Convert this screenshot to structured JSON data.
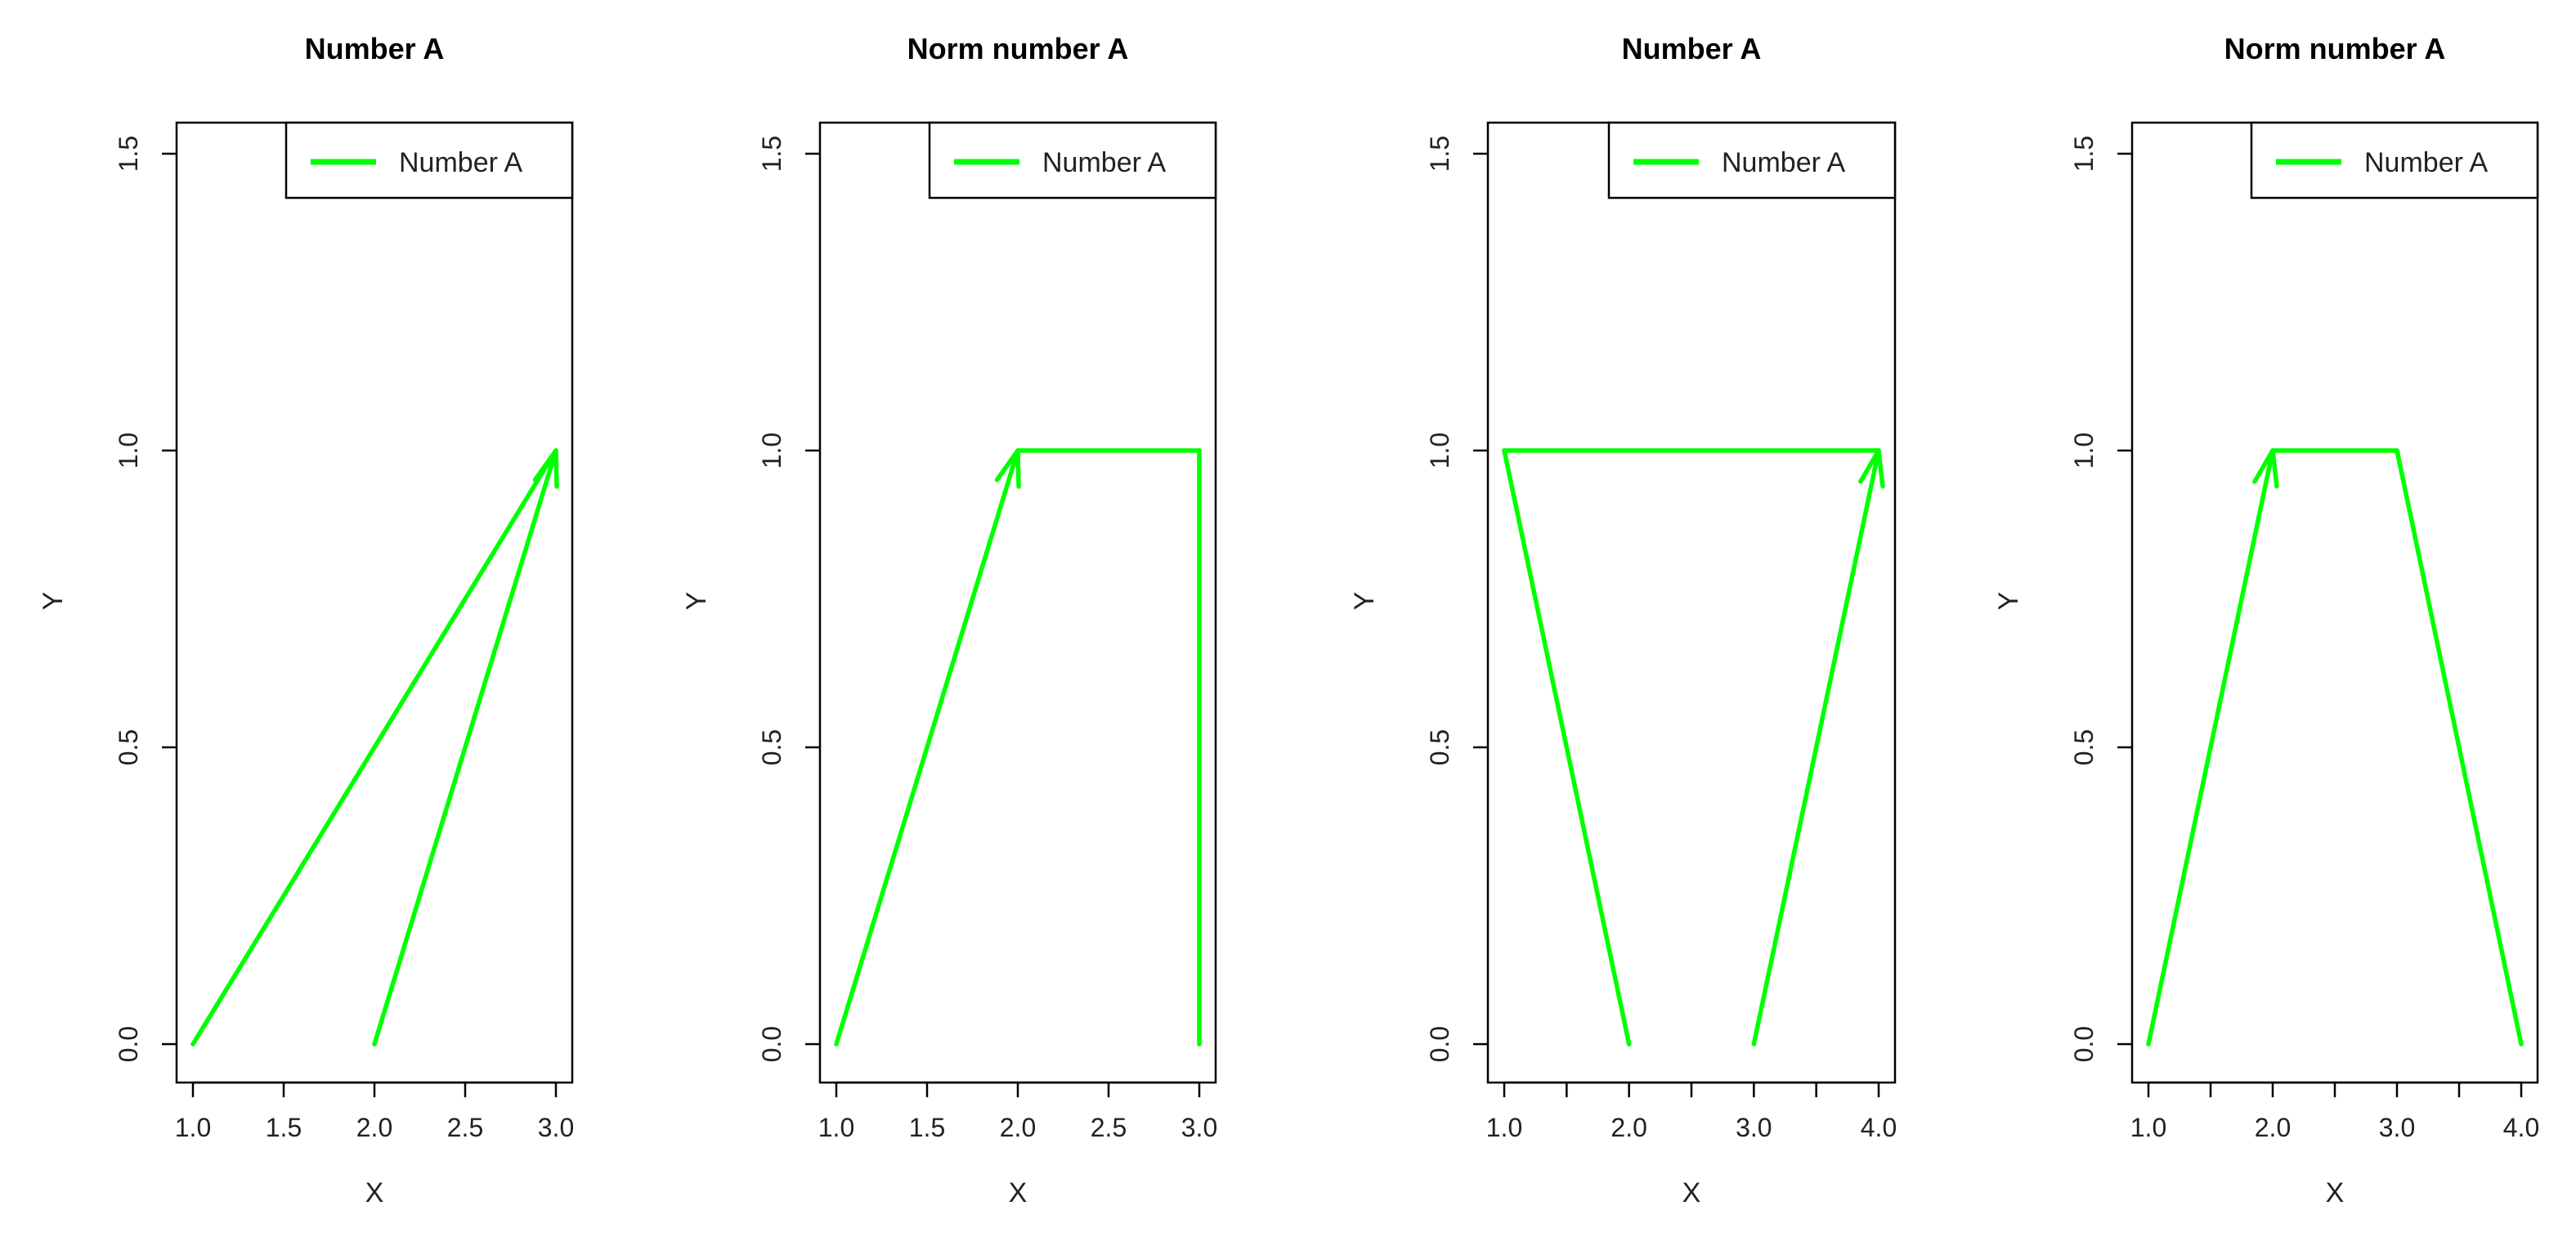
{
  "chart_data": [
    {
      "type": "line",
      "title": "Number A",
      "xlabel": "X",
      "ylabel": "Y",
      "xlim": [
        1.0,
        3.0
      ],
      "ylim": [
        0.0,
        1.5
      ],
      "x_ticks": [
        "1.0",
        "1.5",
        "2.0",
        "2.5",
        "3.0"
      ],
      "y_ticks": [
        "0.0",
        "0.5",
        "1.0",
        "1.5"
      ],
      "legend": {
        "position": "top-right",
        "entries": [
          "Number A"
        ]
      },
      "series": [
        {
          "name": "Number A",
          "color": "#00ff00",
          "segments": [
            {
              "from": [
                1.0,
                0.0
              ],
              "to": [
                3.0,
                1.0
              ],
              "arrow": false
            },
            {
              "from": [
                2.0,
                0.0
              ],
              "to": [
                3.0,
                1.0
              ],
              "arrow": true
            }
          ]
        }
      ]
    },
    {
      "type": "line",
      "title": "Norm number A",
      "xlabel": "X",
      "ylabel": "Y",
      "xlim": [
        1.0,
        3.0
      ],
      "ylim": [
        0.0,
        1.5
      ],
      "x_ticks": [
        "1.0",
        "1.5",
        "2.0",
        "2.5",
        "3.0"
      ],
      "y_ticks": [
        "0.0",
        "0.5",
        "1.0",
        "1.5"
      ],
      "legend": {
        "position": "top-right",
        "entries": [
          "Number A"
        ]
      },
      "series": [
        {
          "name": "Number A",
          "color": "#00ff00",
          "segments": [
            {
              "from": [
                1.0,
                0.0
              ],
              "to": [
                2.0,
                1.0
              ],
              "arrow": true
            },
            {
              "from": [
                2.0,
                1.0
              ],
              "to": [
                3.0,
                1.0
              ],
              "arrow": false
            },
            {
              "from": [
                3.0,
                1.0
              ],
              "to": [
                3.0,
                0.0
              ],
              "arrow": false
            }
          ]
        }
      ]
    },
    {
      "type": "line",
      "title": "Number A",
      "xlabel": "X",
      "ylabel": "Y",
      "xlim": [
        1.0,
        4.0
      ],
      "ylim": [
        0.0,
        1.5
      ],
      "x_ticks": [
        "1.0",
        "",
        "2.0",
        "",
        "3.0",
        "",
        "4.0"
      ],
      "y_ticks": [
        "0.0",
        "0.5",
        "1.0",
        "1.5"
      ],
      "legend": {
        "position": "top-right",
        "entries": [
          "Number A"
        ]
      },
      "series": [
        {
          "name": "Number A",
          "color": "#00ff00",
          "segments": [
            {
              "from": [
                2.0,
                0.0
              ],
              "to": [
                1.0,
                1.0
              ],
              "arrow": false
            },
            {
              "from": [
                1.0,
                1.0
              ],
              "to": [
                4.0,
                1.0
              ],
              "arrow": false
            },
            {
              "from": [
                3.0,
                0.0
              ],
              "to": [
                4.0,
                1.0
              ],
              "arrow": true
            }
          ]
        }
      ]
    },
    {
      "type": "line",
      "title": "Norm number A",
      "xlabel": "X",
      "ylabel": "Y",
      "xlim": [
        1.0,
        4.0
      ],
      "ylim": [
        0.0,
        1.5
      ],
      "x_ticks": [
        "1.0",
        "",
        "2.0",
        "",
        "3.0",
        "",
        "4.0"
      ],
      "y_ticks": [
        "0.0",
        "0.5",
        "1.0",
        "1.5"
      ],
      "legend": {
        "position": "top-right",
        "entries": [
          "Number A"
        ]
      },
      "series": [
        {
          "name": "Number A",
          "color": "#00ff00",
          "segments": [
            {
              "from": [
                1.0,
                0.0
              ],
              "to": [
                2.0,
                1.0
              ],
              "arrow": true
            },
            {
              "from": [
                2.0,
                1.0
              ],
              "to": [
                3.0,
                1.0
              ],
              "arrow": false
            },
            {
              "from": [
                3.0,
                1.0
              ],
              "to": [
                4.0,
                0.0
              ],
              "arrow": false
            }
          ]
        }
      ]
    }
  ]
}
